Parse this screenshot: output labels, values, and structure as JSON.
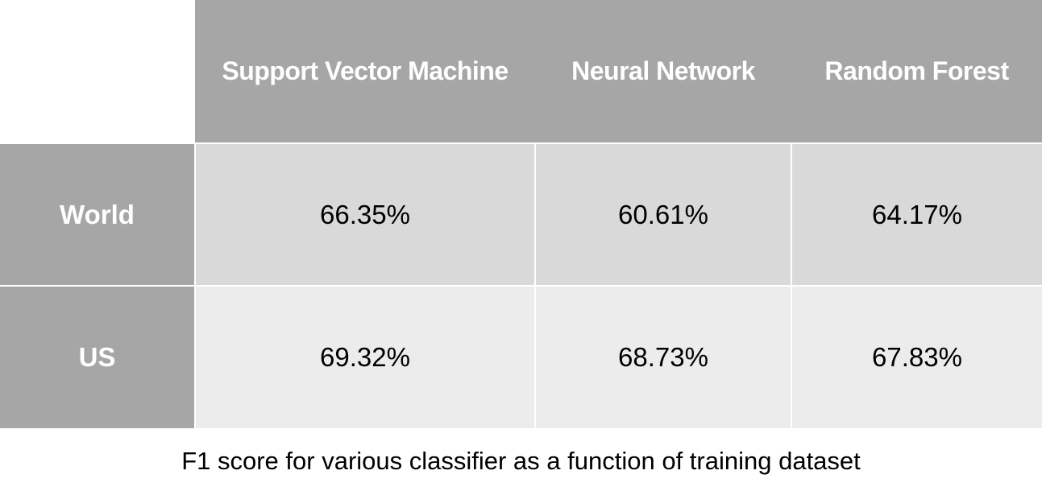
{
  "table": {
    "columns": [
      "Support Vector Machine",
      "Neural Network",
      "Random Forest"
    ],
    "rows": [
      {
        "label": "World",
        "values": [
          "66.35%",
          "60.61%",
          "64.17%"
        ]
      },
      {
        "label": "US",
        "values": [
          "69.32%",
          "68.73%",
          "67.83%"
        ]
      }
    ]
  },
  "caption": "F1 score for various classifier as a function of training dataset",
  "colors": {
    "header_bg": "#a6a6a6",
    "header_text": "#ffffff",
    "row_world_bg": "#d9d9d9",
    "row_us_bg": "#ececec",
    "cell_text": "#000000"
  }
}
